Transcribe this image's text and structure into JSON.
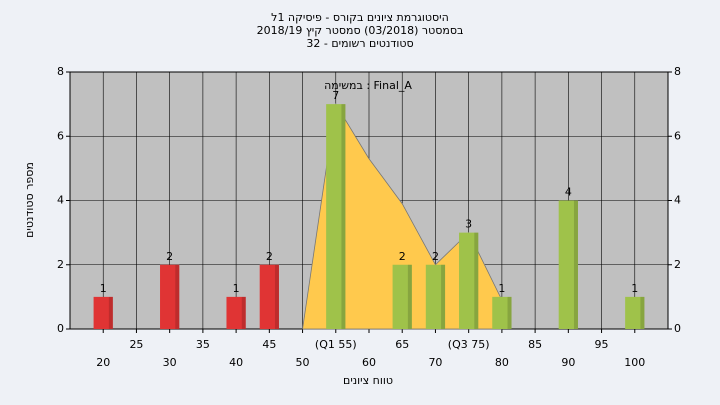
{
  "chart_data": {
    "type": "bar",
    "title": "היסטוגרמת ציונים בקורס - פיסיקה 1ל",
    "subtitle": "בסמסטר (03/2018) סמסטר קיץ 2018/19",
    "subtitle2": "סטודנטים רשומים - 32",
    "annotation": "במשימה : Final_A",
    "x_label": "טווח ציונים",
    "y_label": "מספר סטודנטים",
    "x": [
      20,
      30,
      40,
      45,
      55,
      65,
      70,
      75,
      80,
      90,
      100
    ],
    "values": [
      1,
      2,
      1,
      2,
      7,
      2,
      2,
      3,
      1,
      4,
      1
    ],
    "colors": [
      "#e03434",
      "#e03434",
      "#e03434",
      "#e03434",
      "#9fc24a",
      "#9fc24a",
      "#9fc24a",
      "#9fc24a",
      "#9fc24a",
      "#9fc24a",
      "#9fc24a"
    ],
    "area": {
      "x": [
        50,
        55,
        60,
        65,
        70,
        75,
        80
      ],
      "values": [
        0,
        7,
        5.3,
        3.9,
        2,
        3,
        0.9
      ],
      "color": "#ffc94d"
    },
    "xlim": [
      15,
      105
    ],
    "xticks": [
      20,
      25,
      30,
      35,
      40,
      45,
      50,
      {
        "value": 55,
        "label": "(Q1 55)"
      },
      60,
      65,
      70,
      {
        "value": 75,
        "label": "(Q3 75)"
      },
      80,
      85,
      90,
      95,
      100
    ],
    "ylim": [
      0,
      8
    ],
    "yticks": [
      0,
      2,
      4,
      6,
      8
    ],
    "grid": true
  }
}
